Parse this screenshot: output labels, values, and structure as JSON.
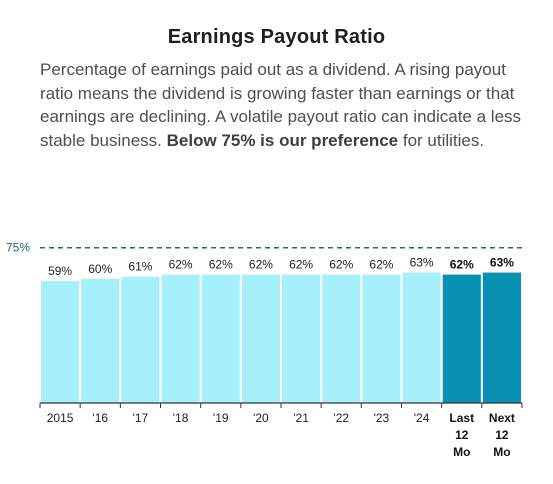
{
  "title": "Earnings Payout Ratio",
  "description": {
    "text_before": "Percentage of earnings paid out as a dividend. A rising payout ratio means the dividend is growing faster than earnings or that earnings are declining. A volatile payout ratio can indicate a less stable business. ",
    "bold_text": "Below 75% is our preference",
    "text_after": " for utilities."
  },
  "colors": {
    "bar": "#a5f0fb",
    "bar_highlight": "#0891b2",
    "reference_line": "#1a6a80",
    "axis": "#333333"
  },
  "chart_data": {
    "type": "bar",
    "title": "Earnings Payout Ratio",
    "ylim": [
      0,
      85
    ],
    "reference_line": {
      "value": 75,
      "label": "75%",
      "style": "dashed"
    },
    "categories": [
      [
        "2015"
      ],
      [
        "'16"
      ],
      [
        "'17"
      ],
      [
        "'18"
      ],
      [
        "'19"
      ],
      [
        "'20"
      ],
      [
        "'21"
      ],
      [
        "'22"
      ],
      [
        "'23"
      ],
      [
        "'24"
      ],
      [
        "Last",
        "12",
        "Mo"
      ],
      [
        "Next",
        "12",
        "Mo"
      ]
    ],
    "values": [
      59,
      60,
      61,
      62,
      62,
      62,
      62,
      62,
      62,
      63,
      62,
      63
    ],
    "value_labels": [
      "59%",
      "60%",
      "61%",
      "62%",
      "62%",
      "62%",
      "62%",
      "62%",
      "62%",
      "63%",
      "62%",
      "63%"
    ],
    "highlighted": [
      false,
      false,
      false,
      false,
      false,
      false,
      false,
      false,
      false,
      false,
      true,
      true
    ]
  }
}
